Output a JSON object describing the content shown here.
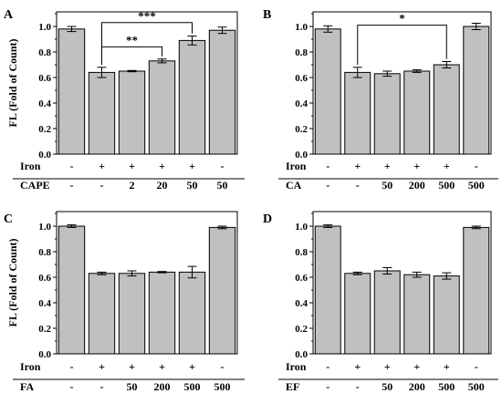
{
  "colors": {
    "bar_fill": "#c0c0c0",
    "bar_stroke": "#000000",
    "axis": "#000000"
  },
  "chart_data": [
    {
      "panel": "A",
      "type": "bar",
      "ylabel": "FL (Fold of Count)",
      "ylim": [
        0,
        1.1
      ],
      "yticks": [
        "0.0",
        "0.2",
        "0.4",
        "0.6",
        "0.8",
        "1.0"
      ],
      "values": [
        0.98,
        0.64,
        0.65,
        0.73,
        0.89,
        0.97
      ],
      "errors": [
        0.02,
        0.04,
        0.005,
        0.015,
        0.035,
        0.025
      ],
      "rows": [
        {
          "name": "Iron",
          "cells": [
            "-",
            "+",
            "+",
            "+",
            "+",
            "-"
          ]
        },
        {
          "name": "CAPE",
          "cells": [
            "-",
            "-",
            "2",
            "20",
            "50",
            "50"
          ]
        }
      ],
      "brackets": [
        {
          "from": 1,
          "to": 3,
          "label": "**"
        },
        {
          "from": 1,
          "to": 4,
          "label": "***"
        }
      ]
    },
    {
      "panel": "B",
      "type": "bar",
      "ylabel": "",
      "ylim": [
        0,
        1.1
      ],
      "yticks": [
        "0.0",
        "0.2",
        "0.4",
        "0.6",
        "0.8",
        "1.0"
      ],
      "values": [
        0.98,
        0.64,
        0.63,
        0.65,
        0.7,
        1.0
      ],
      "errors": [
        0.025,
        0.04,
        0.02,
        0.01,
        0.025,
        0.025
      ],
      "rows": [
        {
          "name": "Iron",
          "cells": [
            "-",
            "+",
            "+",
            "+",
            "+",
            "-"
          ]
        },
        {
          "name": "CA",
          "cells": [
            "-",
            "-",
            "50",
            "200",
            "500",
            "500"
          ]
        }
      ],
      "brackets": [
        {
          "from": 1,
          "to": 4,
          "label": "*"
        }
      ]
    },
    {
      "panel": "C",
      "type": "bar",
      "ylabel": "FL (Fold of Count)",
      "ylim": [
        0,
        1.1
      ],
      "yticks": [
        "0.0",
        "0.2",
        "0.4",
        "0.6",
        "0.8",
        "1.0"
      ],
      "values": [
        1.0,
        0.63,
        0.63,
        0.64,
        0.64,
        0.99
      ],
      "errors": [
        0.01,
        0.01,
        0.02,
        0.005,
        0.045,
        0.01
      ],
      "rows": [
        {
          "name": "Iron",
          "cells": [
            "-",
            "+",
            "+",
            "+",
            "+",
            "-"
          ]
        },
        {
          "name": "FA",
          "cells": [
            "-",
            "-",
            "50",
            "200",
            "500",
            "500"
          ]
        }
      ],
      "brackets": []
    },
    {
      "panel": "D",
      "type": "bar",
      "ylabel": "",
      "ylim": [
        0,
        1.1
      ],
      "yticks": [
        "0.0",
        "0.2",
        "0.4",
        "0.6",
        "0.8",
        "1.0"
      ],
      "values": [
        1.0,
        0.63,
        0.65,
        0.62,
        0.61,
        0.99
      ],
      "errors": [
        0.01,
        0.01,
        0.025,
        0.02,
        0.025,
        0.01
      ],
      "rows": [
        {
          "name": "Iron",
          "cells": [
            "-",
            "+",
            "+",
            "+",
            "+",
            "-"
          ]
        },
        {
          "name": "EF",
          "cells": [
            "-",
            "-",
            "50",
            "200",
            "500",
            "500"
          ]
        }
      ],
      "brackets": []
    }
  ]
}
